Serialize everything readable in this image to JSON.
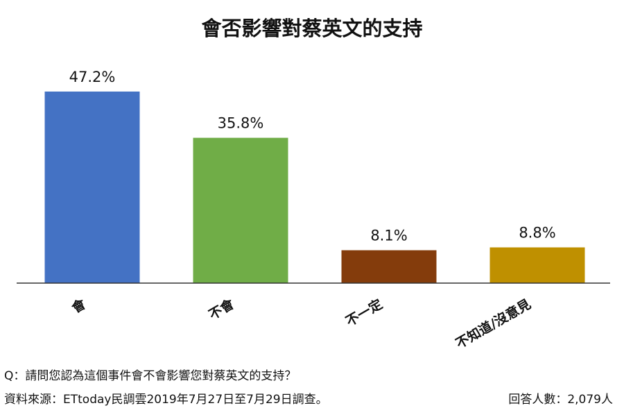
{
  "chart_data": {
    "type": "bar",
    "title": "會否影響對蔡英文的支持",
    "categories": [
      "會",
      "不會",
      "不一定",
      "不知道/沒意見"
    ],
    "values": [
      47.2,
      35.8,
      8.1,
      8.8
    ],
    "value_labels": [
      "47.2%",
      "35.8%",
      "8.1%",
      "8.8%"
    ],
    "colors": [
      "#4472C4",
      "#70AD47",
      "#843C0C",
      "#BF9000"
    ],
    "ylim": [
      0,
      53
    ],
    "grid": false,
    "xlabel": "",
    "ylabel": ""
  },
  "footer": {
    "question": "Q：請問您認為這個事件會不會影響您對蔡英文的支持？",
    "source": "資料來源：ETtoday民調雲2019年7月27日至7月29日調查。",
    "respondents": "回答人數：2,079人"
  }
}
